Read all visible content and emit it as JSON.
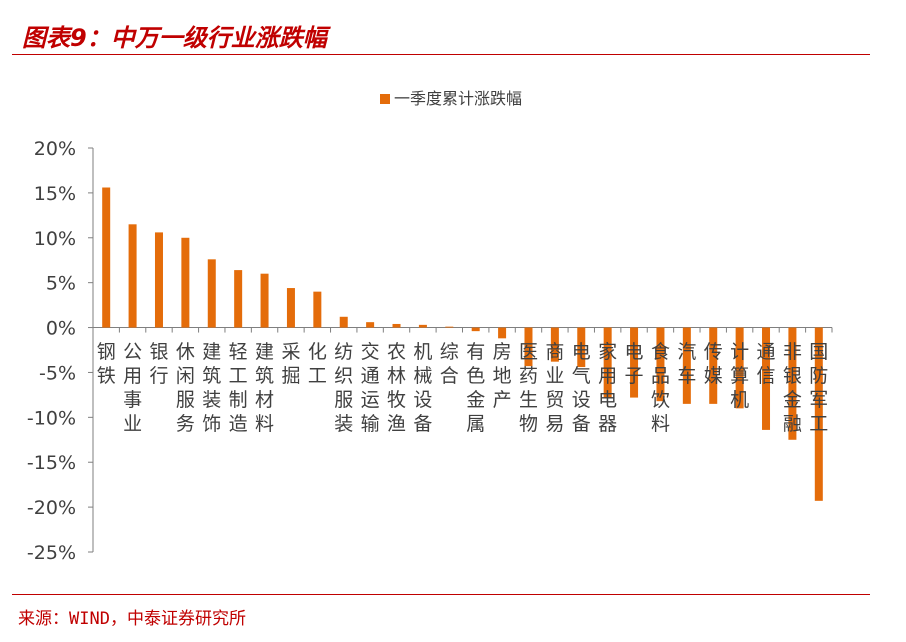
{
  "title": "图表9：中万一级行业涨跌幅",
  "source": "来源：WIND，中泰证券研究所",
  "colors": {
    "bar": "#e46c0a",
    "accent": "#c00000",
    "axis": "#7f7f7f",
    "text": "#404040"
  },
  "chart_data": {
    "type": "bar",
    "title": "",
    "xlabel": "",
    "ylabel": "",
    "ylim": [
      -25,
      20
    ],
    "y_ticks": [
      "20%",
      "15%",
      "10%",
      "5%",
      "0%",
      "-5%",
      "-10%",
      "-15%",
      "-20%",
      "-25%"
    ],
    "grid": false,
    "legend": "top-center",
    "categories": [
      "钢铁",
      "公用事业",
      "银行",
      "休闲服务",
      "建筑装饰",
      "轻工制造",
      "建筑材料",
      "采掘",
      "化工",
      "纺织服装",
      "交通运输",
      "农林牧渔",
      "机械设备",
      "综合",
      "有色金属",
      "房地产",
      "医药生物",
      "商业贸易",
      "电气设备",
      "家用电器",
      "电子",
      "食品饮料",
      "汽车",
      "传媒",
      "计算机",
      "通信",
      "非银金融",
      "国防军工"
    ],
    "series": [
      {
        "name": "一季度累计涨跌幅",
        "values": [
          15.6,
          11.5,
          10.6,
          10.0,
          7.6,
          6.4,
          6.0,
          4.4,
          4.0,
          1.2,
          0.6,
          0.4,
          0.3,
          0.1,
          -0.4,
          -1.2,
          -4.3,
          -3.8,
          -4.4,
          -7.9,
          -7.8,
          -8.2,
          -8.5,
          -8.5,
          -9.0,
          -11.4,
          -12.5,
          -19.3
        ]
      }
    ]
  }
}
